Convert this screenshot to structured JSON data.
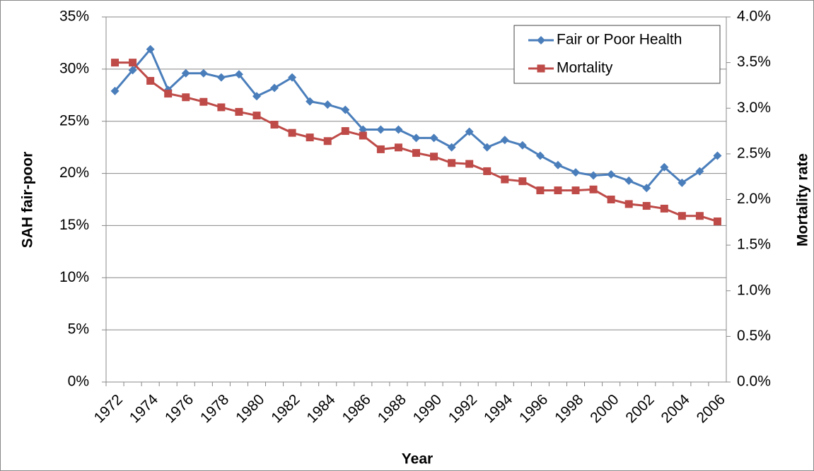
{
  "chart_data": {
    "type": "line",
    "x_label": "Year",
    "y_label": "SAH fair-poor",
    "y2_label": "Mortality rate",
    "categories": [
      "1972",
      null,
      "1974",
      null,
      "1976",
      null,
      "1978",
      null,
      "1980",
      null,
      "1982",
      null,
      "1984",
      null,
      "1986",
      null,
      "1988",
      null,
      "1990",
      null,
      "1992",
      null,
      "1994",
      null,
      "1996",
      null,
      "1998",
      null,
      "2000",
      null,
      "2002",
      null,
      "2004",
      null,
      "2006"
    ],
    "series": [
      {
        "name": "Fair or Poor Health",
        "color": "#4a7ebb",
        "marker": "diamond",
        "values": [
          27.9,
          29.9,
          31.9,
          28.0,
          29.6,
          29.6,
          29.2,
          29.5,
          27.4,
          28.2,
          29.2,
          26.9,
          26.6,
          26.1,
          24.2,
          24.2,
          24.2,
          23.4,
          23.4,
          22.5,
          24.0,
          22.5,
          23.2,
          22.7,
          21.7,
          20.8,
          20.1,
          19.8,
          19.9,
          19.3,
          18.6,
          20.6,
          19.1,
          20.2,
          21.7
        ]
      },
      {
        "name": "Mortality",
        "color": "#be4b48",
        "marker": "square",
        "axis": "y2",
        "values": [
          3.5,
          3.5,
          3.3,
          3.16,
          3.12,
          3.07,
          3.01,
          2.96,
          2.92,
          2.82,
          2.73,
          2.68,
          2.64,
          2.75,
          2.7,
          2.55,
          2.57,
          2.51,
          2.47,
          2.4,
          2.39,
          2.31,
          2.22,
          2.2,
          2.1,
          2.1,
          2.1,
          2.11,
          2.0,
          1.95,
          1.93,
          1.9,
          1.82,
          1.82,
          1.76
        ]
      }
    ],
    "ylim": [
      0,
      35
    ],
    "yticks": [
      {
        "value": 0,
        "label": "0%"
      },
      {
        "value": 5,
        "label": "5%"
      },
      {
        "value": 10,
        "label": "10%"
      },
      {
        "value": 15,
        "label": "15%"
      },
      {
        "value": 20,
        "label": "20%"
      },
      {
        "value": 25,
        "label": "25%"
      },
      {
        "value": 30,
        "label": "30%"
      },
      {
        "value": 35,
        "label": "35%"
      }
    ],
    "y2lim": [
      0,
      4
    ],
    "y2ticks": [
      {
        "value": 0,
        "label": "0.0%"
      },
      {
        "value": 0.5,
        "label": "0.5%"
      },
      {
        "value": 1,
        "label": "1.0%"
      },
      {
        "value": 1.5,
        "label": "1.5%"
      },
      {
        "value": 2,
        "label": "2.0%"
      },
      {
        "value": 2.5,
        "label": "2.5%"
      },
      {
        "value": 3,
        "label": "3.0%"
      },
      {
        "value": 3.5,
        "label": "3.5%"
      },
      {
        "value": 4,
        "label": "4.0%"
      }
    ],
    "grid": true,
    "legend": "top-right"
  }
}
